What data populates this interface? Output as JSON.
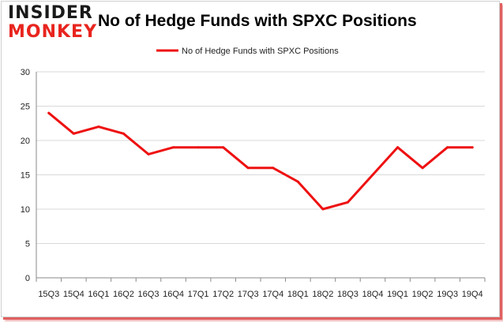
{
  "logo": {
    "top": "INSIDER",
    "bottom": "MONKEY"
  },
  "chart_data": {
    "type": "line",
    "title": "No of Hedge Funds with SPXC Positions",
    "categories": [
      "15Q3",
      "15Q4",
      "16Q1",
      "16Q2",
      "16Q3",
      "16Q4",
      "17Q1",
      "17Q2",
      "17Q3",
      "17Q4",
      "18Q1",
      "18Q2",
      "18Q3",
      "18Q4",
      "19Q1",
      "19Q2",
      "19Q3",
      "19Q4"
    ],
    "series": [
      {
        "name": "No of Hedge Funds with SPXC Positions",
        "values": [
          24,
          21,
          22,
          21,
          18,
          19,
          19,
          19,
          16,
          16,
          14,
          10,
          11,
          15,
          19,
          16,
          19,
          19
        ],
        "color": "#ee1111"
      }
    ],
    "ylim": [
      0,
      30
    ],
    "yticks": [
      0,
      5,
      10,
      15,
      20,
      25,
      30
    ],
    "grid": true,
    "legend": "top-center"
  }
}
